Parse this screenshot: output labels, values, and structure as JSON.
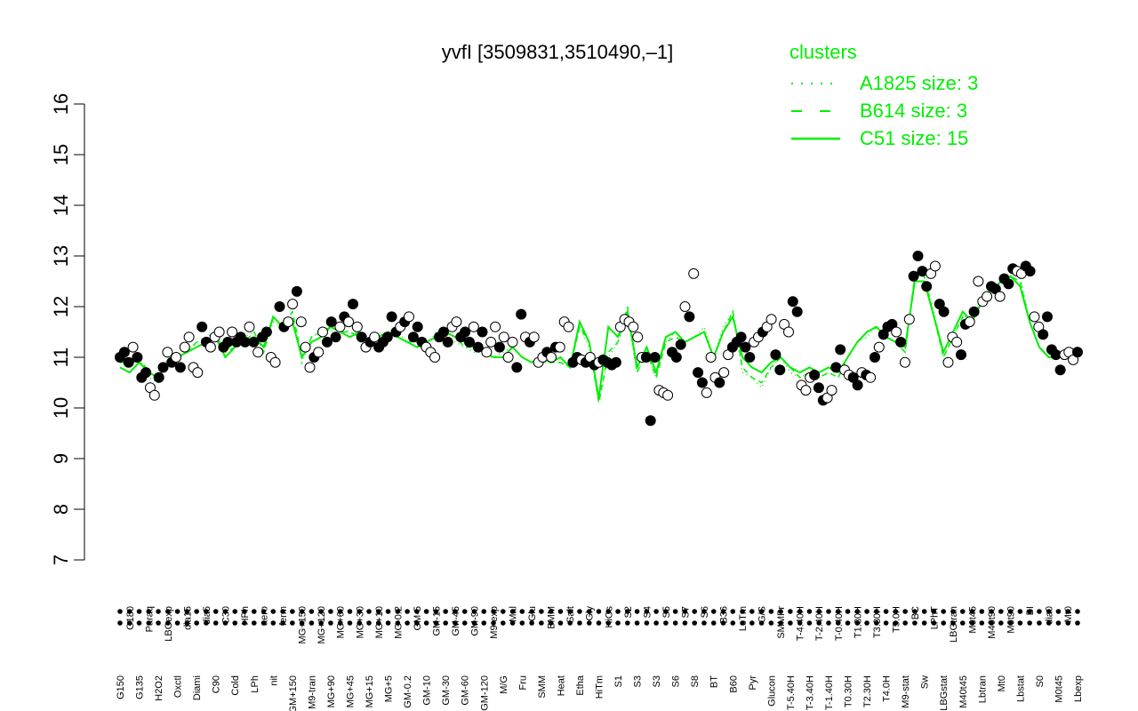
{
  "chart_data": {
    "type": "line",
    "title": "yvfI [3509831,3510490,–1]",
    "xlabel": "",
    "ylabel": "",
    "ylim": [
      7,
      16
    ],
    "yticks": [
      "7",
      "8",
      "9",
      "10",
      "11",
      "12",
      "13",
      "14",
      "15",
      "16"
    ],
    "colors": {
      "series": "#00ee00",
      "legend_text": "#00ee00",
      "points_filled": "#000000",
      "points_open": "#ffffff"
    },
    "legend": {
      "title": "clusters",
      "placement": "top-right",
      "entries": [
        {
          "label": "A1825 size: 3",
          "style": "dotted"
        },
        {
          "label": "B614 size: 3",
          "style": "dashed"
        },
        {
          "label": "C51 size: 15",
          "style": "solid"
        }
      ]
    },
    "x_tick_labels": [
      "G150",
      "G180",
      "G135",
      "Paraq",
      "H2O2",
      "LBGexp",
      "Oxctl",
      "dia15",
      "Diami",
      "dia5",
      "C90",
      "C30",
      "Cold",
      "HPh",
      "LPh",
      "aero",
      "nit",
      "ferm",
      "GM+150",
      "MG+150",
      "M9-tran",
      "MG+120",
      "MG+90",
      "MG+60",
      "MG+45",
      "MG+30",
      "MG+15",
      "MG+10",
      "MG+5",
      "MG-0.2",
      "GM-0.2",
      "GM-5",
      "GM-10",
      "GM-15",
      "GM-30",
      "GM-45",
      "GM-60",
      "GM-90",
      "GM-120",
      "M9-exp",
      "M/G",
      "Mal",
      "Fru",
      "Glu",
      "SMM",
      "BMM",
      "Heat",
      "Salt",
      "Etha",
      "Gly",
      "HiTm",
      "HiOs",
      "S1",
      "S2",
      "S3",
      "S4",
      "S3",
      "S5",
      "S6",
      "S7",
      "S8",
      "S6",
      "BT",
      "B36",
      "B60",
      "LoTm",
      "Pyr",
      "G/S",
      "Glucon",
      "SMMPr",
      "T-5.40H",
      "T-4.40H",
      "T-3.40H",
      "T-2.40H",
      "T-1.40H",
      "T-0.40H",
      "T0.30H",
      "T1.30H",
      "T2.30H",
      "T3.30H",
      "T4.0H",
      "T5.0H",
      "M9-stat",
      "BC",
      "Sw",
      "LPhT",
      "LBGstat",
      "LBGtran",
      "M40t45",
      "M0t45",
      "Lbtran",
      "M40t90",
      "Mt0",
      "M0t90",
      "Lbstat",
      "BI",
      "S0",
      "dia0",
      "M0t45",
      "Mt0",
      "Lbexp"
    ],
    "series": [
      {
        "name": "C51 size: 15",
        "style": "solid",
        "y": [
          10.8,
          10.7,
          10.9,
          10.7,
          10.6,
          10.9,
          11.0,
          11.1,
          11.2,
          11.3,
          11.4,
          11.0,
          11.2,
          11.3,
          11.4,
          11.2,
          11.8,
          11.6,
          11.7,
          11.0,
          11.3,
          11.4,
          11.6,
          11.5,
          11.4,
          11.5,
          11.3,
          11.4,
          11.5,
          11.4,
          11.3,
          11.2,
          11.3,
          11.4,
          11.5,
          11.4,
          11.3,
          11.2,
          11.1,
          11.0,
          11.0,
          11.2,
          11.0,
          10.9,
          11.0,
          10.9,
          11.0,
          10.8,
          11.7,
          11.3,
          10.2,
          11.6,
          11.4,
          11.9,
          10.8,
          11.2,
          10.7,
          11.4,
          11.5,
          11.3,
          11.4,
          11.5,
          11.0,
          11.5,
          11.8,
          11.0,
          10.8,
          10.7,
          10.9,
          11.0,
          10.8,
          10.7,
          10.8,
          10.7,
          10.8,
          10.7,
          11.0,
          11.3,
          11.5,
          11.6,
          11.4,
          11.3,
          11.2,
          12.5,
          12.5,
          11.8,
          11.1,
          11.5,
          11.9,
          11.7,
          12.1,
          12.3,
          12.5,
          12.6,
          12.4,
          11.7,
          11.2,
          11.0,
          11.0,
          11.1,
          11.2
        ]
      },
      {
        "name": "A1825 size: 3",
        "style": "dotted",
        "y": [
          10.9,
          10.8,
          11.0,
          10.6,
          10.5,
          11.0,
          11.0,
          11.1,
          11.3,
          11.4,
          11.5,
          11.1,
          11.3,
          11.4,
          11.5,
          11.1,
          11.7,
          11.6,
          11.8,
          10.9,
          11.4,
          11.5,
          11.5,
          11.6,
          11.5,
          11.4,
          11.3,
          11.5,
          11.4,
          11.5,
          11.3,
          11.2,
          11.2,
          11.5,
          11.4,
          11.3,
          11.2,
          11.1,
          11.1,
          11.0,
          11.1,
          11.2,
          11.0,
          10.9,
          10.9,
          10.9,
          10.9,
          10.8,
          11.6,
          11.2,
          10.1,
          11.0,
          11.3,
          11.8,
          10.7,
          11.1,
          10.6,
          11.3,
          11.5,
          11.3,
          11.4,
          11.6,
          11.0,
          11.6,
          11.9,
          10.7,
          10.6,
          10.4,
          10.8,
          11.0,
          10.7,
          10.6,
          10.7,
          10.6,
          10.7,
          10.6,
          11.0,
          11.3,
          11.4,
          11.6,
          11.4,
          11.3,
          11.1,
          12.6,
          12.6,
          11.9,
          11.0,
          11.4,
          11.8,
          11.8,
          12.1,
          12.3,
          12.5,
          12.7,
          12.6,
          11.7,
          11.2,
          11.0,
          11.0,
          11.0,
          11.1
        ]
      },
      {
        "name": "B614 size: 3",
        "style": "dashed",
        "y": [
          10.9,
          10.9,
          11.0,
          10.7,
          10.6,
          10.9,
          11.0,
          11.1,
          11.3,
          11.3,
          11.4,
          11.1,
          11.2,
          11.3,
          11.5,
          11.1,
          11.8,
          11.6,
          11.9,
          11.0,
          11.4,
          11.5,
          11.6,
          11.5,
          11.5,
          11.4,
          11.4,
          11.4,
          11.5,
          11.4,
          11.3,
          11.3,
          11.3,
          11.4,
          11.5,
          11.4,
          11.2,
          11.2,
          11.1,
          11.0,
          11.0,
          11.2,
          11.0,
          10.9,
          11.0,
          10.9,
          10.9,
          10.8,
          11.6,
          11.3,
          10.1,
          11.1,
          11.3,
          12.0,
          10.7,
          11.1,
          10.6,
          11.3,
          11.4,
          11.3,
          11.4,
          11.5,
          11.0,
          11.5,
          11.9,
          10.8,
          10.6,
          10.5,
          10.8,
          11.0,
          10.8,
          10.6,
          10.7,
          10.6,
          10.7,
          10.6,
          11.0,
          11.3,
          11.5,
          11.6,
          11.4,
          11.3,
          11.1,
          12.6,
          12.6,
          11.8,
          11.0,
          11.4,
          11.8,
          11.7,
          12.1,
          12.3,
          12.5,
          12.6,
          12.5,
          11.7,
          11.2,
          11.0,
          11.0,
          11.1,
          11.1
        ]
      }
    ],
    "points": [
      {
        "y": 11.0,
        "f": 1
      },
      {
        "y": 11.1,
        "f": 1
      },
      {
        "y": 10.9,
        "f": 1
      },
      {
        "y": 11.2,
        "f": 0
      },
      {
        "y": 11.0,
        "f": 1
      },
      {
        "y": 10.6,
        "f": 1
      },
      {
        "y": 10.7,
        "f": 1
      },
      {
        "y": 10.4,
        "f": 0
      },
      {
        "y": 10.25,
        "f": 0
      },
      {
        "y": 10.6,
        "f": 1
      },
      {
        "y": 10.8,
        "f": 1
      },
      {
        "y": 11.1,
        "f": 0
      },
      {
        "y": 10.9,
        "f": 1
      },
      {
        "y": 11.0,
        "f": 0
      },
      {
        "y": 10.8,
        "f": 1
      },
      {
        "y": 11.2,
        "f": 0
      },
      {
        "y": 11.4,
        "f": 0
      },
      {
        "y": 10.8,
        "f": 0
      },
      {
        "y": 10.7,
        "f": 0
      },
      {
        "y": 11.6,
        "f": 1
      },
      {
        "y": 11.3,
        "f": 1
      },
      {
        "y": 11.2,
        "f": 0
      },
      {
        "y": 11.4,
        "f": 0
      },
      {
        "y": 11.5,
        "f": 0
      },
      {
        "y": 11.2,
        "f": 1
      },
      {
        "y": 11.3,
        "f": 1
      },
      {
        "y": 11.5,
        "f": 0
      },
      {
        "y": 11.3,
        "f": 1
      },
      {
        "y": 11.4,
        "f": 1
      },
      {
        "y": 11.3,
        "f": 1
      },
      {
        "y": 11.6,
        "f": 0
      },
      {
        "y": 11.3,
        "f": 1
      },
      {
        "y": 11.1,
        "f": 0
      },
      {
        "y": 11.4,
        "f": 1
      },
      {
        "y": 11.5,
        "f": 1
      },
      {
        "y": 11.0,
        "f": 0
      },
      {
        "y": 10.9,
        "f": 0
      },
      {
        "y": 12.0,
        "f": 1
      },
      {
        "y": 11.6,
        "f": 1
      },
      {
        "y": 11.7,
        "f": 0
      },
      {
        "y": 12.05,
        "f": 0
      },
      {
        "y": 12.3,
        "f": 1
      },
      {
        "y": 11.7,
        "f": 0
      },
      {
        "y": 11.2,
        "f": 0
      },
      {
        "y": 10.8,
        "f": 0
      },
      {
        "y": 11.0,
        "f": 1
      },
      {
        "y": 11.1,
        "f": 0
      },
      {
        "y": 11.5,
        "f": 0
      },
      {
        "y": 11.3,
        "f": 1
      },
      {
        "y": 11.7,
        "f": 1
      },
      {
        "y": 11.4,
        "f": 1
      },
      {
        "y": 11.6,
        "f": 0
      },
      {
        "y": 11.8,
        "f": 1
      },
      {
        "y": 11.7,
        "f": 0
      },
      {
        "y": 12.05,
        "f": 1
      },
      {
        "y": 11.6,
        "f": 0
      },
      {
        "y": 11.4,
        "f": 1
      },
      {
        "y": 11.2,
        "f": 0
      },
      {
        "y": 11.3,
        "f": 1
      },
      {
        "y": 11.4,
        "f": 0
      },
      {
        "y": 11.2,
        "f": 1
      },
      {
        "y": 11.3,
        "f": 1
      },
      {
        "y": 11.4,
        "f": 1
      },
      {
        "y": 11.8,
        "f": 1
      },
      {
        "y": 11.5,
        "f": 1
      },
      {
        "y": 11.6,
        "f": 0
      },
      {
        "y": 11.7,
        "f": 1
      },
      {
        "y": 11.8,
        "f": 0
      },
      {
        "y": 11.4,
        "f": 1
      },
      {
        "y": 11.6,
        "f": 1
      },
      {
        "y": 11.3,
        "f": 1
      },
      {
        "y": 11.2,
        "f": 0
      },
      {
        "y": 11.1,
        "f": 0
      },
      {
        "y": 11.0,
        "f": 0
      },
      {
        "y": 11.4,
        "f": 1
      },
      {
        "y": 11.5,
        "f": 1
      },
      {
        "y": 11.3,
        "f": 1
      },
      {
        "y": 11.6,
        "f": 0
      },
      {
        "y": 11.7,
        "f": 0
      },
      {
        "y": 11.4,
        "f": 1
      },
      {
        "y": 11.5,
        "f": 1
      },
      {
        "y": 11.3,
        "f": 1
      },
      {
        "y": 11.6,
        "f": 0
      },
      {
        "y": 11.2,
        "f": 1
      },
      {
        "y": 11.5,
        "f": 1
      },
      {
        "y": 11.1,
        "f": 0
      },
      {
        "y": 11.3,
        "f": 0
      },
      {
        "y": 11.6,
        "f": 0
      },
      {
        "y": 11.2,
        "f": 1
      },
      {
        "y": 11.4,
        "f": 0
      },
      {
        "y": 11.0,
        "f": 0
      },
      {
        "y": 11.3,
        "f": 0
      },
      {
        "y": 10.8,
        "f": 1
      },
      {
        "y": 11.85,
        "f": 1
      },
      {
        "y": 11.4,
        "f": 0
      },
      {
        "y": 11.3,
        "f": 1
      },
      {
        "y": 11.4,
        "f": 0
      },
      {
        "y": 10.9,
        "f": 0
      },
      {
        "y": 11.0,
        "f": 0
      },
      {
        "y": 11.1,
        "f": 1
      },
      {
        "y": 11.0,
        "f": 0
      },
      {
        "y": 11.2,
        "f": 1
      },
      {
        "y": 11.2,
        "f": 0
      },
      {
        "y": 11.7,
        "f": 0
      },
      {
        "y": 11.6,
        "f": 0
      },
      {
        "y": 10.9,
        "f": 1
      },
      {
        "y": 11.0,
        "f": 1
      },
      {
        "y": 10.95,
        "f": 0
      },
      {
        "y": 10.9,
        "f": 1
      },
      {
        "y": 11.0,
        "f": 0
      },
      {
        "y": 10.85,
        "f": 1
      },
      {
        "y": 10.9,
        "f": 0
      },
      {
        "y": 10.95,
        "f": 1
      },
      {
        "y": 10.9,
        "f": 1
      },
      {
        "y": 10.85,
        "f": 1
      },
      {
        "y": 10.9,
        "f": 1
      },
      {
        "y": 11.6,
        "f": 0
      },
      {
        "y": 11.75,
        "f": 0
      },
      {
        "y": 11.7,
        "f": 0
      },
      {
        "y": 11.6,
        "f": 0
      },
      {
        "y": 11.4,
        "f": 0
      },
      {
        "y": 11.0,
        "f": 0
      },
      {
        "y": 11.0,
        "f": 1
      },
      {
        "y": 9.75,
        "f": 1
      },
      {
        "y": 11.0,
        "f": 1
      },
      {
        "y": 10.35,
        "f": 0
      },
      {
        "y": 10.3,
        "f": 0
      },
      {
        "y": 10.25,
        "f": 0
      },
      {
        "y": 11.1,
        "f": 1
      },
      {
        "y": 11.0,
        "f": 1
      },
      {
        "y": 11.25,
        "f": 1
      },
      {
        "y": 12.0,
        "f": 0
      },
      {
        "y": 11.8,
        "f": 1
      },
      {
        "y": 12.65,
        "f": 0
      },
      {
        "y": 10.7,
        "f": 1
      },
      {
        "y": 10.5,
        "f": 1
      },
      {
        "y": 10.3,
        "f": 0
      },
      {
        "y": 11.0,
        "f": 0
      },
      {
        "y": 10.6,
        "f": 0
      },
      {
        "y": 10.5,
        "f": 1
      },
      {
        "y": 10.7,
        "f": 0
      },
      {
        "y": 11.05,
        "f": 0
      },
      {
        "y": 11.2,
        "f": 1
      },
      {
        "y": 11.3,
        "f": 1
      },
      {
        "y": 11.4,
        "f": 1
      },
      {
        "y": 11.2,
        "f": 1
      },
      {
        "y": 11.0,
        "f": 1
      },
      {
        "y": 11.3,
        "f": 0
      },
      {
        "y": 11.4,
        "f": 0
      },
      {
        "y": 11.5,
        "f": 1
      },
      {
        "y": 11.6,
        "f": 0
      },
      {
        "y": 11.75,
        "f": 0
      },
      {
        "y": 11.05,
        "f": 1
      },
      {
        "y": 10.75,
        "f": 1
      },
      {
        "y": 11.65,
        "f": 0
      },
      {
        "y": 11.5,
        "f": 0
      },
      {
        "y": 12.1,
        "f": 1
      },
      {
        "y": 11.9,
        "f": 1
      },
      {
        "y": 10.45,
        "f": 0
      },
      {
        "y": 10.35,
        "f": 0
      },
      {
        "y": 10.6,
        "f": 0
      },
      {
        "y": 10.65,
        "f": 1
      },
      {
        "y": 10.4,
        "f": 1
      },
      {
        "y": 10.15,
        "f": 1
      },
      {
        "y": 10.2,
        "f": 0
      },
      {
        "y": 10.35,
        "f": 0
      },
      {
        "y": 10.8,
        "f": 1
      },
      {
        "y": 11.15,
        "f": 1
      },
      {
        "y": 10.75,
        "f": 0
      },
      {
        "y": 10.65,
        "f": 0
      },
      {
        "y": 10.6,
        "f": 1
      },
      {
        "y": 10.45,
        "f": 1
      },
      {
        "y": 10.7,
        "f": 0
      },
      {
        "y": 10.65,
        "f": 1
      },
      {
        "y": 10.6,
        "f": 0
      },
      {
        "y": 11.0,
        "f": 1
      },
      {
        "y": 11.2,
        "f": 0
      },
      {
        "y": 11.45,
        "f": 1
      },
      {
        "y": 11.6,
        "f": 1
      },
      {
        "y": 11.65,
        "f": 1
      },
      {
        "y": 11.5,
        "f": 0
      },
      {
        "y": 11.3,
        "f": 1
      },
      {
        "y": 10.9,
        "f": 0
      },
      {
        "y": 11.75,
        "f": 0
      },
      {
        "y": 12.6,
        "f": 1
      },
      {
        "y": 13.0,
        "f": 1
      },
      {
        "y": 12.7,
        "f": 1
      },
      {
        "y": 12.4,
        "f": 1
      },
      {
        "y": 12.65,
        "f": 0
      },
      {
        "y": 12.8,
        "f": 0
      },
      {
        "y": 12.05,
        "f": 1
      },
      {
        "y": 11.9,
        "f": 1
      },
      {
        "y": 10.9,
        "f": 0
      },
      {
        "y": 11.4,
        "f": 0
      },
      {
        "y": 11.3,
        "f": 0
      },
      {
        "y": 11.05,
        "f": 1
      },
      {
        "y": 11.65,
        "f": 1
      },
      {
        "y": 11.7,
        "f": 0
      },
      {
        "y": 11.9,
        "f": 1
      },
      {
        "y": 12.5,
        "f": 0
      },
      {
        "y": 12.1,
        "f": 0
      },
      {
        "y": 12.2,
        "f": 0
      },
      {
        "y": 12.4,
        "f": 1
      },
      {
        "y": 12.35,
        "f": 1
      },
      {
        "y": 12.2,
        "f": 0
      },
      {
        "y": 12.55,
        "f": 1
      },
      {
        "y": 12.45,
        "f": 1
      },
      {
        "y": 12.75,
        "f": 1
      },
      {
        "y": 12.7,
        "f": 0
      },
      {
        "y": 12.65,
        "f": 0
      },
      {
        "y": 12.8,
        "f": 1
      },
      {
        "y": 12.7,
        "f": 1
      },
      {
        "y": 11.8,
        "f": 0
      },
      {
        "y": 11.6,
        "f": 0
      },
      {
        "y": 11.45,
        "f": 1
      },
      {
        "y": 11.8,
        "f": 1
      },
      {
        "y": 11.15,
        "f": 1
      },
      {
        "y": 11.05,
        "f": 1
      },
      {
        "y": 10.75,
        "f": 1
      },
      {
        "y": 11.05,
        "f": 0
      },
      {
        "y": 11.1,
        "f": 0
      },
      {
        "y": 10.95,
        "f": 0
      },
      {
        "y": 11.1,
        "f": 1
      }
    ]
  }
}
